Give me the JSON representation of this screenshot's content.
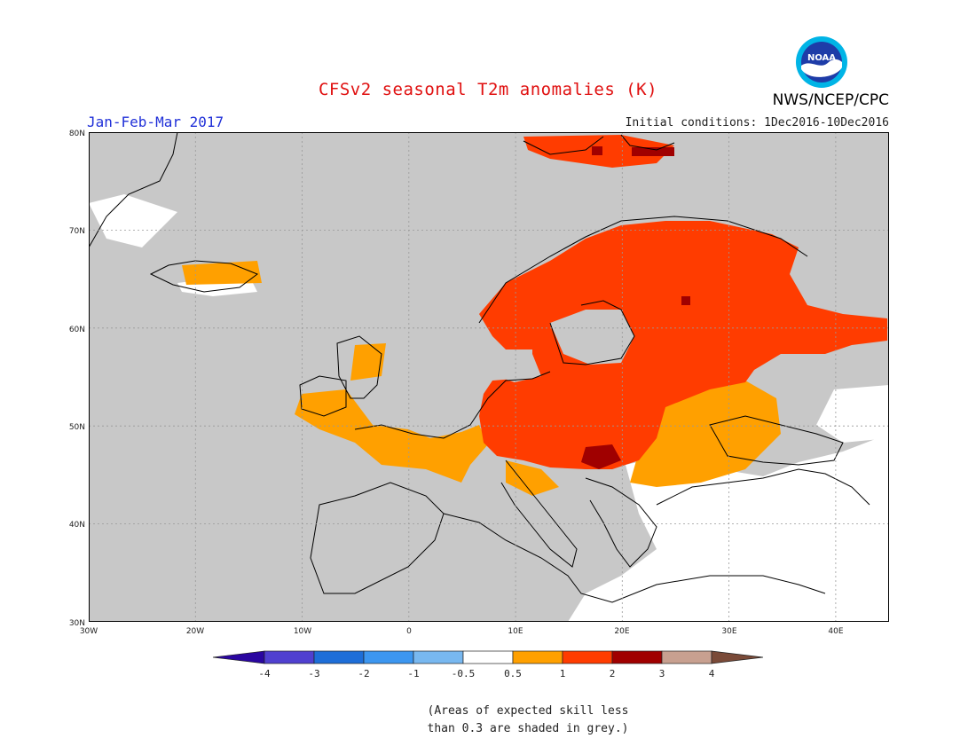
{
  "header": {
    "title": "CFSv2 seasonal T2m anomalies (K)",
    "period": "Jan-Feb-Mar 2017",
    "initial_conditions": "Initial conditions: 1Dec2016-10Dec2016",
    "organization": "NWS/NCEP/CPC",
    "logo_text": "NOAA"
  },
  "map": {
    "region": "Europe",
    "lat_ticks": [
      "80N",
      "70N",
      "60N",
      "50N",
      "40N",
      "30N"
    ],
    "lon_ticks": [
      "30W",
      "20W",
      "10W",
      "0",
      "10E",
      "20E",
      "30E",
      "40E"
    ],
    "lat_range": [
      30,
      80
    ],
    "lon_range": [
      -30,
      45
    ],
    "background_color": "#c8c8c8"
  },
  "colorbar": {
    "labels": [
      "-4",
      "-3",
      "-2",
      "-1",
      "-0.5",
      "0.5",
      "1",
      "2",
      "3",
      "4"
    ],
    "colors": [
      "#2a06a0",
      "#5040d0",
      "#1e6ed8",
      "#3c96f0",
      "#78b8f0",
      "#ffffff",
      "#ffa000",
      "#ff3c00",
      "#a00000",
      "#c8a090",
      "#7a4a38"
    ]
  },
  "footnote": {
    "line1": "(Areas of expected skill less",
    "line2": "than 0.3 are shaded in grey.)"
  }
}
